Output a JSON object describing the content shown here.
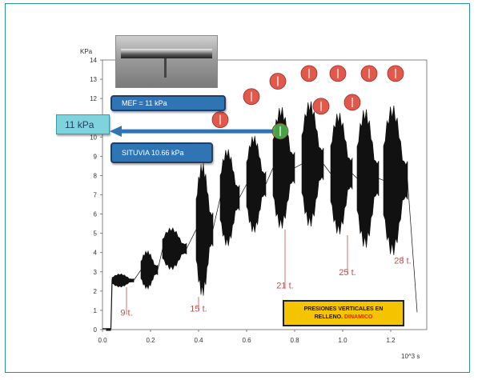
{
  "chart_data": {
    "type": "line",
    "ylabel": "KPa",
    "xlabel": "10^3 s",
    "xlim": [
      0.0,
      1.35
    ],
    "ylim": [
      0,
      14
    ],
    "x_ticks": [
      "0.0",
      "0.2",
      "0.4",
      "0.6",
      "0.8",
      "1.0",
      "1.2"
    ],
    "x_tick_values": [
      0.0,
      0.2,
      0.4,
      0.6,
      0.8,
      1.0,
      1.2
    ],
    "y_ticks": [
      "0",
      "1",
      "2",
      "3",
      "4",
      "5",
      "6",
      "7",
      "8",
      "9",
      "10",
      "11",
      "12",
      "13",
      "14"
    ],
    "bursts": [
      {
        "x0": 0.04,
        "x1": 0.13,
        "ymin": 2.2,
        "ymax": 2.9
      },
      {
        "x0": 0.16,
        "x1": 0.23,
        "ymin": 2.1,
        "ymax": 4.1
      },
      {
        "x0": 0.25,
        "x1": 0.35,
        "ymin": 3.1,
        "ymax": 5.3
      },
      {
        "x0": 0.39,
        "x1": 0.46,
        "ymin": 1.7,
        "ymax": 8.7
      },
      {
        "x0": 0.49,
        "x1": 0.57,
        "ymin": 4.3,
        "ymax": 9.4
      },
      {
        "x0": 0.6,
        "x1": 0.68,
        "ymin": 5.0,
        "ymax": 10.1
      },
      {
        "x0": 0.71,
        "x1": 0.8,
        "ymin": 5.2,
        "ymax": 11.6
      },
      {
        "x0": 0.83,
        "x1": 0.92,
        "ymin": 5.3,
        "ymax": 11.9
      },
      {
        "x0": 0.95,
        "x1": 1.04,
        "ymin": 4.9,
        "ymax": 11.3
      },
      {
        "x0": 1.06,
        "x1": 1.15,
        "ymin": 4.2,
        "ymax": 11.5
      },
      {
        "x0": 1.17,
        "x1": 1.27,
        "ymin": 3.8,
        "ymax": 11.7
      }
    ],
    "markers": [
      {
        "x": 0.49,
        "y": 10.9,
        "color": "#e04a3c"
      },
      {
        "x": 0.62,
        "y": 12.1,
        "color": "#e04a3c"
      },
      {
        "x": 0.73,
        "y": 12.9,
        "color": "#e04a3c"
      },
      {
        "x": 0.74,
        "y": 10.3,
        "color": "#4cae4c"
      },
      {
        "x": 0.86,
        "y": 13.3,
        "color": "#e04a3c"
      },
      {
        "x": 0.91,
        "y": 11.6,
        "color": "#e04a3c"
      },
      {
        "x": 0.98,
        "y": 13.3,
        "color": "#e04a3c"
      },
      {
        "x": 1.04,
        "y": 11.8,
        "color": "#e04a3c"
      },
      {
        "x": 1.11,
        "y": 13.3,
        "color": "#e04a3c"
      },
      {
        "x": 1.22,
        "y": 13.3,
        "color": "#e04a3c"
      }
    ],
    "annotations": [
      {
        "text": "9 t.",
        "x": 0.1,
        "y": 0.9,
        "line_top": 2.2
      },
      {
        "text": "15 t.",
        "x": 0.4,
        "y": 1.1,
        "line_top": 1.7
      },
      {
        "text": "21 t.",
        "x": 0.76,
        "y": 2.3,
        "line_top": 5.2
      },
      {
        "text": "25 t.",
        "x": 1.02,
        "y": 3.0,
        "line_top": 4.9
      },
      {
        "text": "28 t.",
        "x": 1.25,
        "y": 3.6,
        "line_top": 3.8
      }
    ]
  },
  "callouts": {
    "mef": "MEF = 11 kPa",
    "situvia": "SITUVIA 10.66 kPa",
    "measured": "11 kPa"
  },
  "legend": {
    "line1": "PRESIONES VERTICALES EN",
    "line2_prefix": "RELLENO.",
    "line2_highlight": "DINAMICO"
  },
  "colors": {
    "signal": "#111111",
    "accent": "#c0504d",
    "arrow": "#2f75b5",
    "legend_bg": "#f5c400"
  }
}
